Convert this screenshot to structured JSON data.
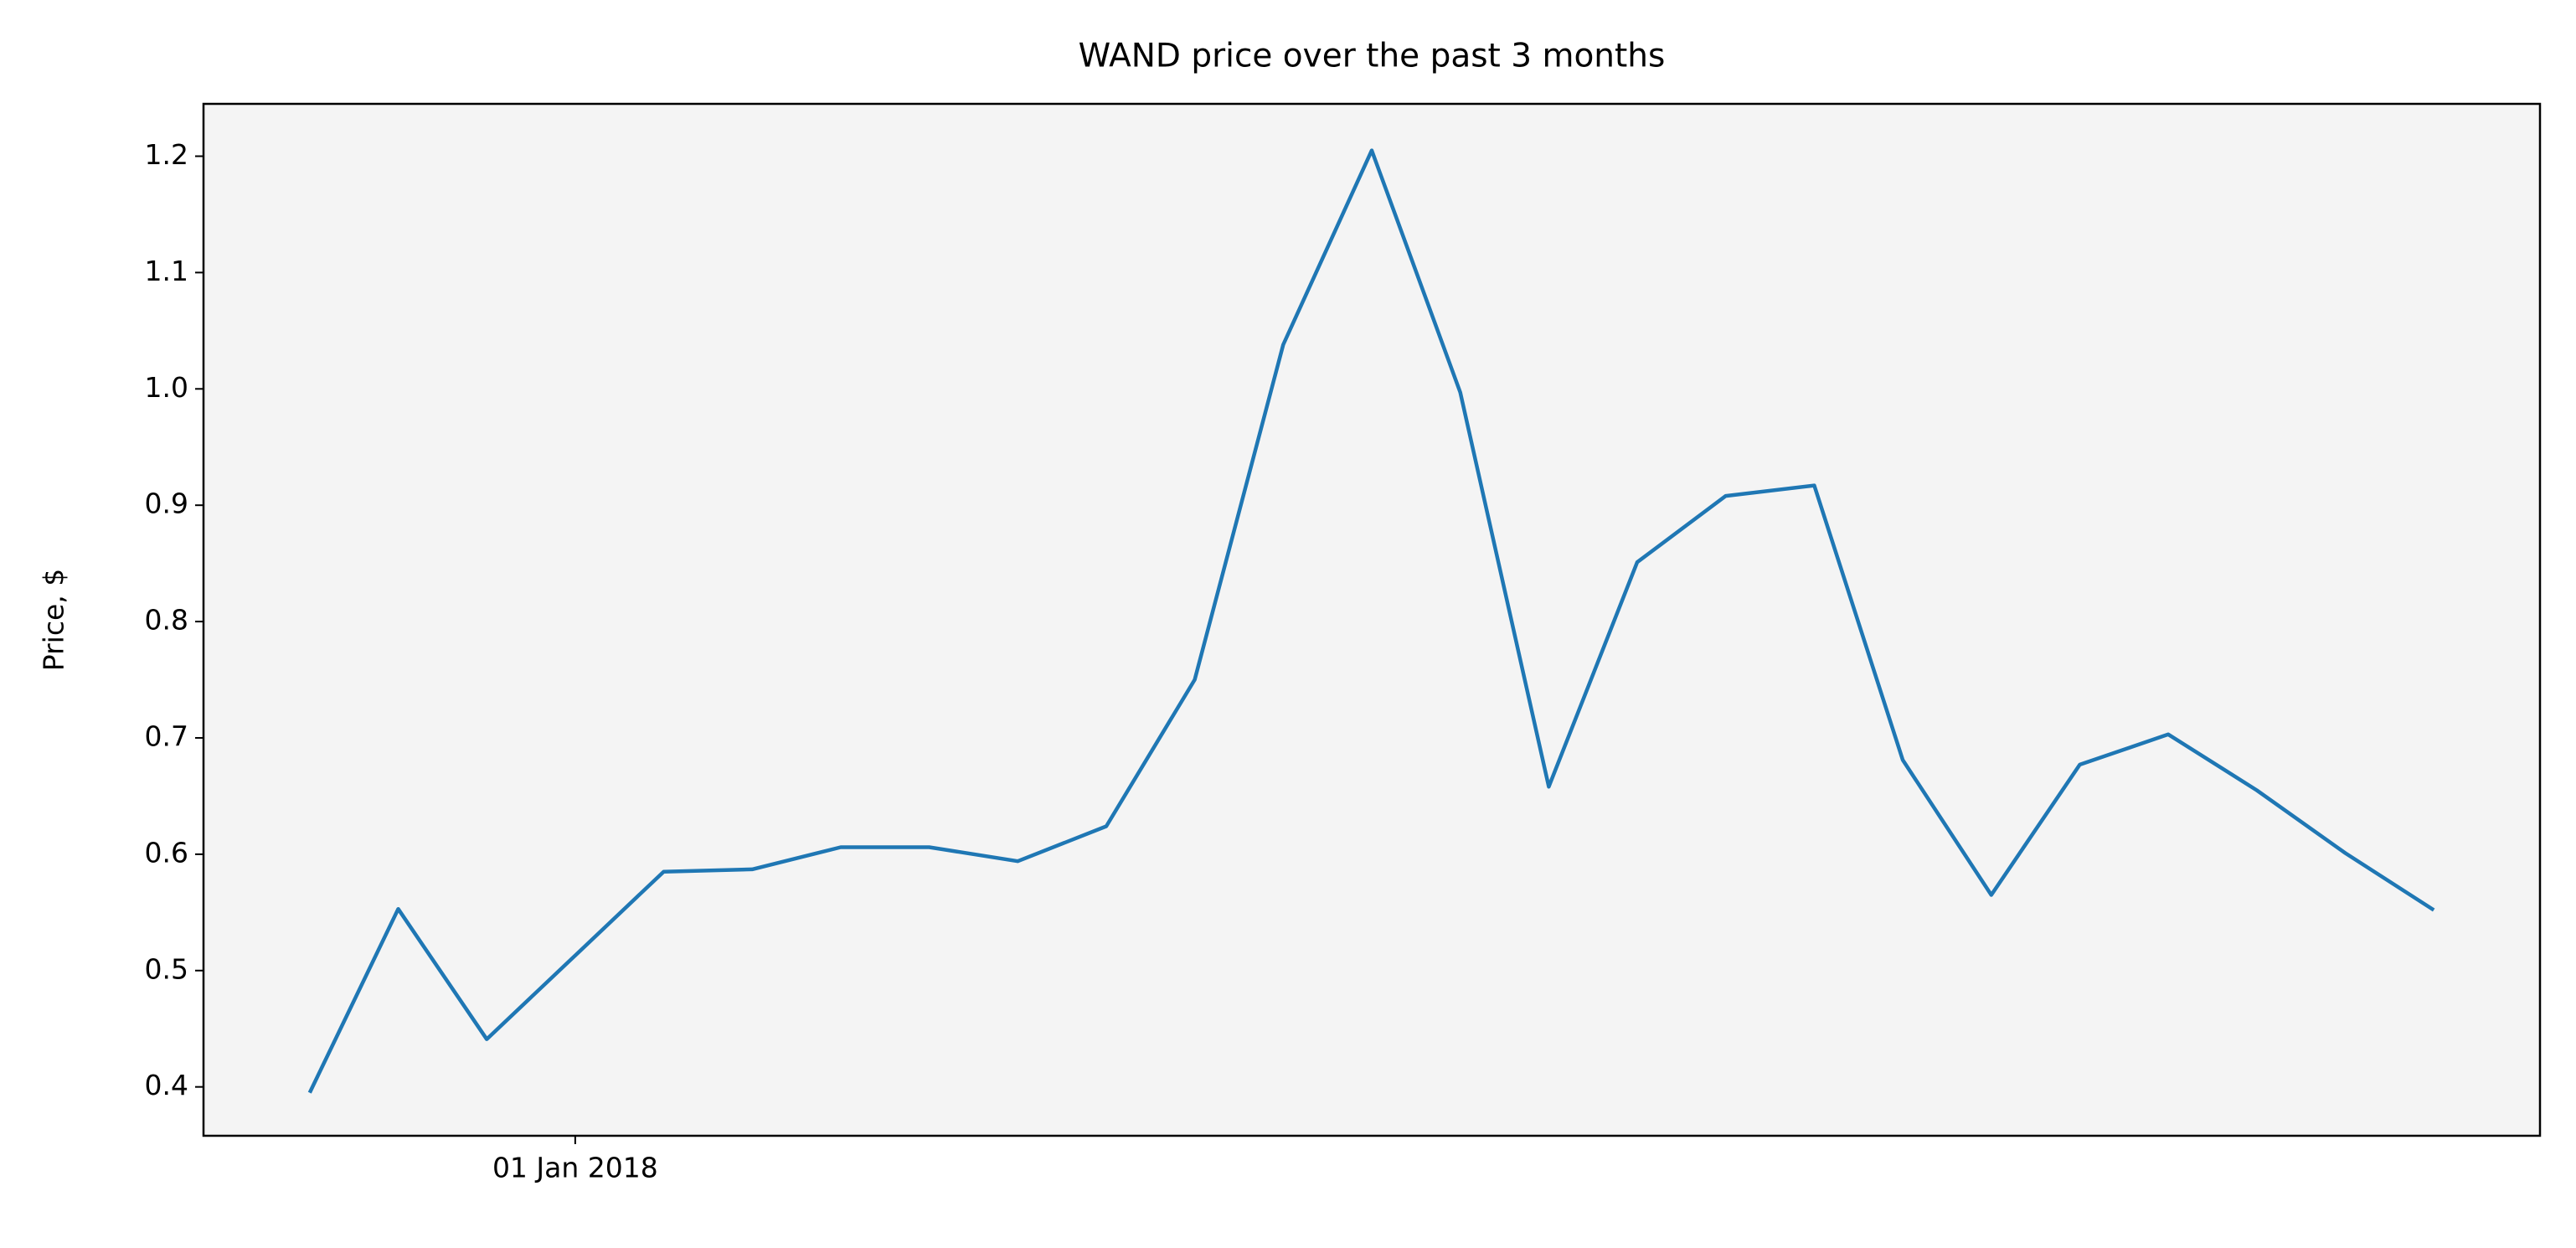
{
  "chart_data": {
    "type": "line",
    "title": "WAND price over the past 3 months",
    "ylabel": "Price, $",
    "categories": [
      null,
      null,
      null,
      "01 Jan 2018",
      null,
      null,
      null,
      null,
      null,
      null,
      null,
      null,
      null,
      null,
      null,
      null,
      null,
      null,
      null,
      null,
      null,
      null,
      null,
      null,
      null
    ],
    "values": [
      0.395,
      0.553,
      0.441,
      0.513,
      0.585,
      0.587,
      0.606,
      0.606,
      0.594,
      0.624,
      0.75,
      1.038,
      1.205,
      0.997,
      0.658,
      0.851,
      0.908,
      0.917,
      0.681,
      0.565,
      0.677,
      0.703,
      0.655,
      0.601,
      0.552
    ],
    "color": "#1f77b4",
    "facecolor": "#f4f4f4",
    "ylim": [
      0.358,
      1.245
    ],
    "yticks": [
      0.4,
      0.5,
      0.6,
      0.7,
      0.8,
      0.9,
      {
        "value": 1,
        "label": "1.0"
      },
      1.1,
      1.2
    ]
  }
}
